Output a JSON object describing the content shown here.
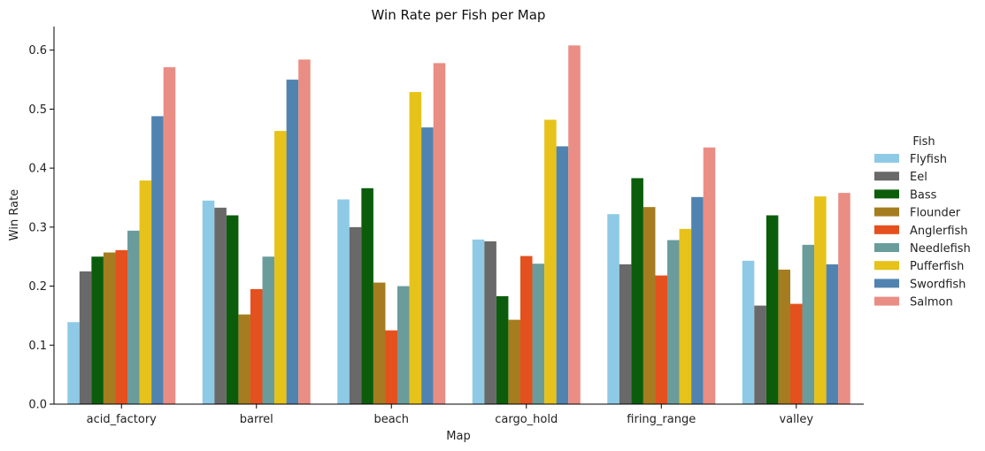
{
  "chart_data": {
    "type": "bar",
    "title": "Win Rate per Fish per Map",
    "xlabel": "Map",
    "ylabel": "Win Rate",
    "ylim": [
      0,
      0.64
    ],
    "yticks": [
      "0.0",
      "0.1",
      "0.2",
      "0.3",
      "0.4",
      "0.5",
      "0.6"
    ],
    "grid": false,
    "legend_title": "Fish",
    "legend_position": "right",
    "categories": [
      "acid_factory",
      "barrel",
      "beach",
      "cargo_hold",
      "firing_range",
      "valley"
    ],
    "series": [
      {
        "name": "Flyfish",
        "color": "#8ecae6",
        "values": [
          0.139,
          0.345,
          0.347,
          0.279,
          0.322,
          0.243
        ]
      },
      {
        "name": "Eel",
        "color": "#696969",
        "values": [
          0.225,
          0.333,
          0.3,
          0.276,
          0.237,
          0.167
        ]
      },
      {
        "name": "Bass",
        "color": "#0b5d0b",
        "values": [
          0.25,
          0.32,
          0.366,
          0.183,
          0.383,
          0.32
        ]
      },
      {
        "name": "Flounder",
        "color": "#a57c1f",
        "values": [
          0.257,
          0.152,
          0.206,
          0.143,
          0.334,
          0.228
        ]
      },
      {
        "name": "Anglerfish",
        "color": "#e4501e",
        "values": [
          0.261,
          0.195,
          0.125,
          0.251,
          0.218,
          0.17
        ]
      },
      {
        "name": "Needlefish",
        "color": "#6a9c9c",
        "values": [
          0.294,
          0.25,
          0.2,
          0.238,
          0.278,
          0.27
        ]
      },
      {
        "name": "Pufferfish",
        "color": "#e6c21a",
        "values": [
          0.379,
          0.463,
          0.529,
          0.482,
          0.297,
          0.352
        ]
      },
      {
        "name": "Swordfish",
        "color": "#5083b0",
        "values": [
          0.488,
          0.55,
          0.469,
          0.437,
          0.351,
          0.237
        ]
      },
      {
        "name": "Salmon",
        "color": "#ea8d84",
        "values": [
          0.571,
          0.584,
          0.578,
          0.608,
          0.435,
          0.358
        ]
      }
    ]
  }
}
